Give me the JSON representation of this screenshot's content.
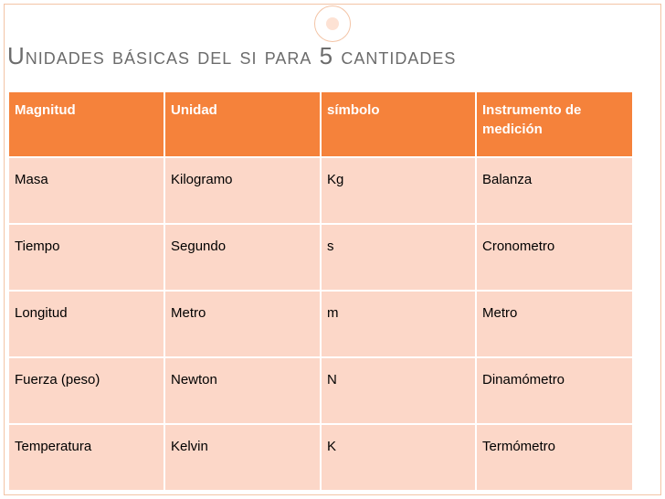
{
  "slide": {
    "title": "Unidades básicas del si para 5 cantidades"
  },
  "table": {
    "headers": [
      "Magnitud",
      "Unidad",
      "símbolo",
      "Instrumento de medición"
    ],
    "rows": [
      [
        "Masa",
        "Kilogramo",
        "Kg",
        "Balanza"
      ],
      [
        "Tiempo",
        "Segundo",
        "s",
        "Cronometro"
      ],
      [
        "Longitud",
        "Metro",
        "m",
        "Metro"
      ],
      [
        "Fuerza (peso)",
        "Newton",
        "N",
        "Dinamómetro"
      ],
      [
        "Temperatura",
        "Kelvin",
        "K",
        "Termómetro"
      ]
    ]
  },
  "colors": {
    "header_bg": "#f5823b",
    "row_bg": "#fcd7c8",
    "title_text": "#6c6c6c",
    "frame": "#f3c4a6"
  }
}
